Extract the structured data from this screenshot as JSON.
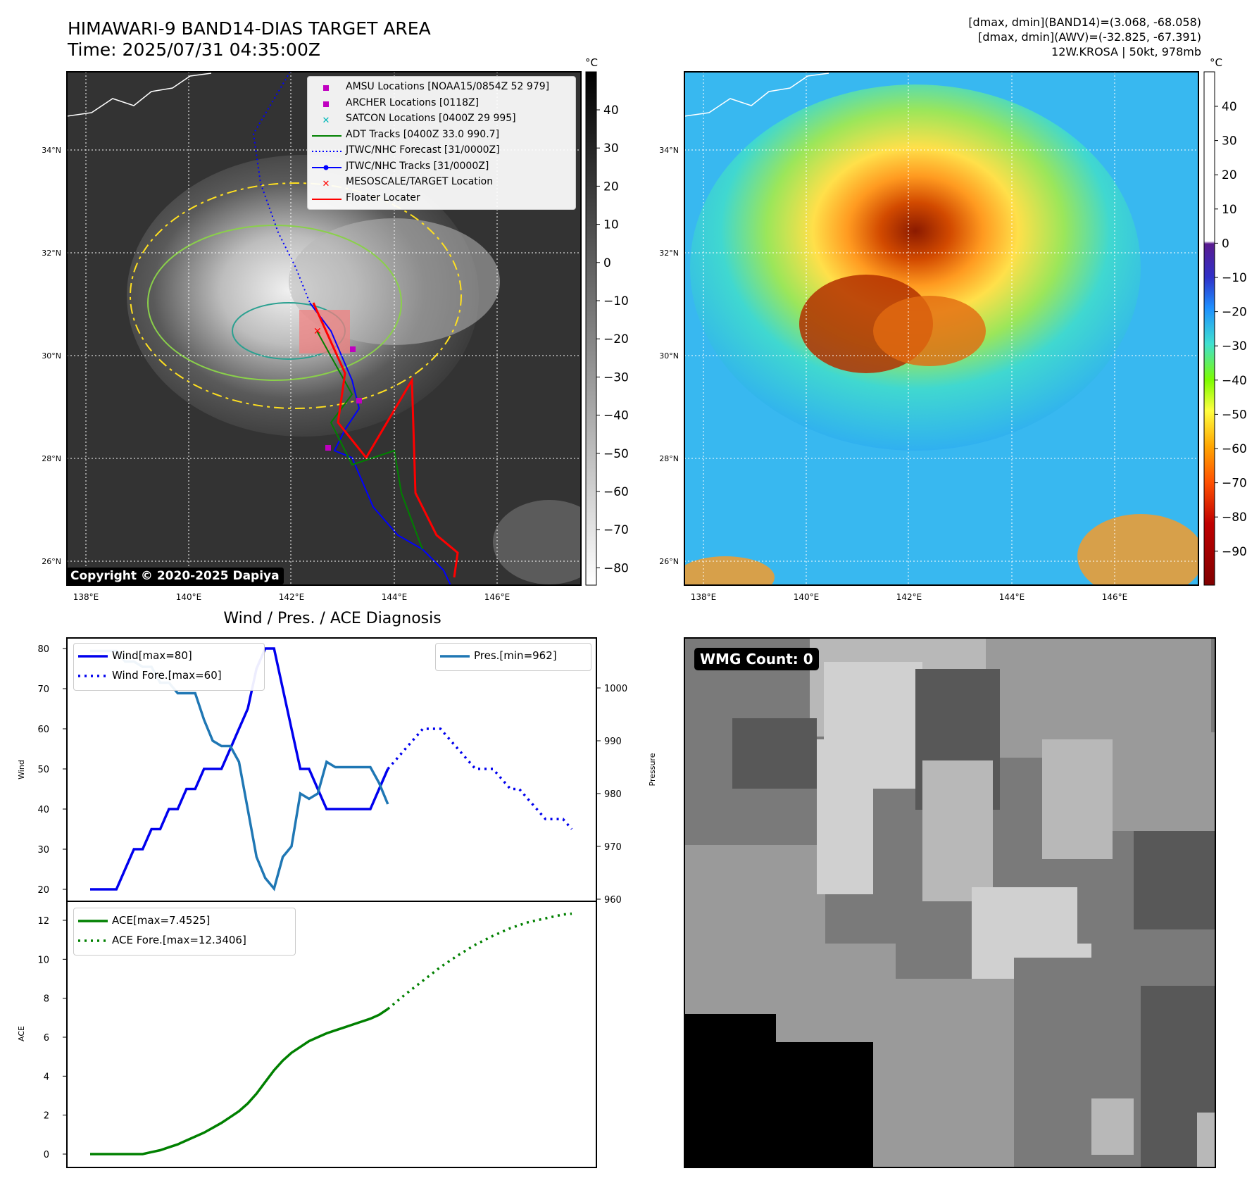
{
  "header": {
    "title_line1": "HIMAWARI-9 BAND14-DIAS TARGET AREA",
    "title_line2": "Time: 2025/07/31 04:35:00Z",
    "right_line1": "[dmax, dmin](BAND14)=(3.068, -68.058)",
    "right_line2": "[dmax, dmin](AWV)=(-32.825, -67.391)",
    "right_line3": "12W.KROSA | 50kt, 978mb"
  },
  "map_left": {
    "copyright": "Copyright © 2020-2025 Dapiya",
    "colorbar_unit": "°C",
    "colorbar_ticks": [
      "40",
      "30",
      "20",
      "10",
      "0",
      "−10",
      "−20",
      "−30",
      "−40",
      "−50",
      "−60",
      "−70",
      "−80"
    ],
    "lat_labels": [
      "34°N",
      "32°N",
      "30°N",
      "28°N",
      "26°N"
    ],
    "lon_labels": [
      "138°E",
      "140°E",
      "142°E",
      "144°E",
      "146°E"
    ],
    "legend": [
      {
        "label": "AMSU Locations [NOAA15/0854Z 52 979]",
        "marker": "square",
        "color": "#c000c0"
      },
      {
        "label": "ARCHER Locations [0118Z]",
        "marker": "square",
        "color": "#c000c0"
      },
      {
        "label": "SATCON Locations [0400Z 29 995]",
        "marker": "x",
        "color": "#00b8b8"
      },
      {
        "label": "ADT Tracks [0400Z 33.0 990.7]",
        "marker": "line",
        "color": "#008000"
      },
      {
        "label": "JTWC/NHC Forecast [31/0000Z]",
        "marker": "dotted",
        "color": "#0000ff"
      },
      {
        "label": "JTWC/NHC Tracks [31/0000Z]",
        "marker": "line-dot",
        "color": "#0000ff"
      },
      {
        "label": "MESOSCALE/TARGET Location",
        "marker": "x",
        "color": "#ff0000"
      },
      {
        "label": "Floater Locater",
        "marker": "line",
        "color": "#ff0000"
      }
    ]
  },
  "map_right": {
    "colorbar_unit": "°C",
    "colorbar_ticks": [
      "40",
      "30",
      "20",
      "10",
      "0",
      "−10",
      "−20",
      "−30",
      "−40",
      "−50",
      "−60",
      "−70",
      "−80",
      "−90"
    ],
    "lat_labels": [
      "34°N",
      "32°N",
      "30°N",
      "28°N",
      "26°N"
    ],
    "lon_labels": [
      "138°E",
      "140°E",
      "142°E",
      "144°E",
      "146°E"
    ]
  },
  "diagnosis": {
    "title": "Wind / Pres. / ACE Diagnosis",
    "wind_ylabel": "Wind",
    "pres_ylabel": "Pressure",
    "ace_ylabel": "ACE",
    "legend_wind": "Wind[max=80]",
    "legend_wind_fore": "Wind Fore.[max=60]",
    "legend_pres": "Pres.[min=962]",
    "legend_ace": "ACE[max=7.4525]",
    "legend_ace_fore": "ACE Fore.[max=12.3406]"
  },
  "wmg": {
    "label": "WMG Count: 0"
  },
  "colors": {
    "wind": "#0000ee",
    "pressure": "#1f77b4",
    "ace": "#008000",
    "track_red": "#ff0000",
    "track_blue": "#0000ff"
  },
  "chart_data": [
    {
      "type": "line",
      "name_hint": "wind",
      "x": [
        0,
        1,
        2,
        3,
        4,
        5,
        6,
        7,
        8,
        9,
        10,
        11,
        12,
        13,
        14,
        15,
        16,
        17,
        18,
        19,
        20,
        21,
        22,
        23,
        24,
        25,
        26,
        27,
        28,
        29,
        30,
        31,
        32,
        33,
        34,
        35,
        36
      ],
      "series": [
        {
          "name": "Wind[max=80]",
          "values": [
            20,
            20,
            20,
            20,
            25,
            30,
            30,
            35,
            35,
            40,
            40,
            45,
            45,
            50,
            50,
            50,
            55,
            60,
            65,
            75,
            80,
            80,
            70,
            60,
            50,
            50,
            45,
            40,
            40,
            40,
            40,
            40,
            40,
            45,
            50,
            null,
            null
          ]
        },
        {
          "name": "Wind Fore.[max=60]",
          "x": [
            34,
            35,
            36,
            37,
            38,
            39,
            40,
            41,
            42,
            43,
            44,
            45,
            46,
            47,
            48,
            49,
            50,
            51,
            52,
            53,
            54,
            55
          ],
          "values": [
            50,
            52.5,
            55,
            57.5,
            60,
            60,
            60,
            57.5,
            55,
            52.5,
            50,
            50,
            50,
            47.5,
            45,
            45,
            42.5,
            40,
            37.5,
            37.5,
            37.5,
            35
          ]
        }
      ],
      "ylim": [
        18,
        82
      ]
    },
    {
      "type": "line",
      "name_hint": "pressure",
      "series": [
        {
          "name": "Pres.[min=962]",
          "x": [
            0,
            1,
            2,
            3,
            4,
            5,
            6,
            7,
            8,
            9,
            10,
            11,
            12,
            13,
            14,
            15,
            16,
            17,
            18,
            19,
            20,
            21,
            22,
            23,
            24,
            25,
            26,
            27,
            28,
            29,
            30,
            31,
            32,
            33,
            34
          ],
          "values": [
            1007,
            1007,
            1007,
            1007,
            1005,
            1005,
            1004,
            1004,
            1001,
            1001,
            999,
            999,
            999,
            994,
            990,
            989,
            989,
            986,
            977,
            968,
            964,
            962,
            968,
            970,
            980,
            979,
            980,
            986,
            985,
            985,
            985,
            985,
            985,
            982,
            978
          ]
        }
      ],
      "ylim": [
        960,
        1008
      ]
    },
    {
      "type": "line",
      "name_hint": "ace",
      "series": [
        {
          "name": "ACE[max=7.4525]",
          "x": [
            0,
            1,
            2,
            3,
            4,
            5,
            6,
            7,
            8,
            9,
            10,
            11,
            12,
            13,
            14,
            15,
            16,
            17,
            18,
            19,
            20,
            21,
            22,
            23,
            24,
            25,
            26,
            27,
            28,
            29,
            30,
            31,
            32,
            33,
            34
          ],
          "values": [
            0,
            0,
            0,
            0,
            0,
            0,
            0,
            0.1,
            0.2,
            0.35,
            0.5,
            0.7,
            0.9,
            1.1,
            1.35,
            1.6,
            1.9,
            2.2,
            2.6,
            3.1,
            3.7,
            4.3,
            4.8,
            5.2,
            5.5,
            5.8,
            6.0,
            6.2,
            6.35,
            6.5,
            6.65,
            6.8,
            6.95,
            7.15,
            7.45
          ]
        },
        {
          "name": "ACE Fore.[max=12.3406]",
          "x": [
            34,
            36,
            38,
            40,
            42,
            44,
            46,
            48,
            50,
            52,
            54,
            55
          ],
          "values": [
            7.45,
            8.2,
            8.9,
            9.6,
            10.2,
            10.75,
            11.2,
            11.6,
            11.9,
            12.1,
            12.3,
            12.34
          ]
        }
      ],
      "ylim": [
        -0.6,
        12.8
      ]
    }
  ]
}
